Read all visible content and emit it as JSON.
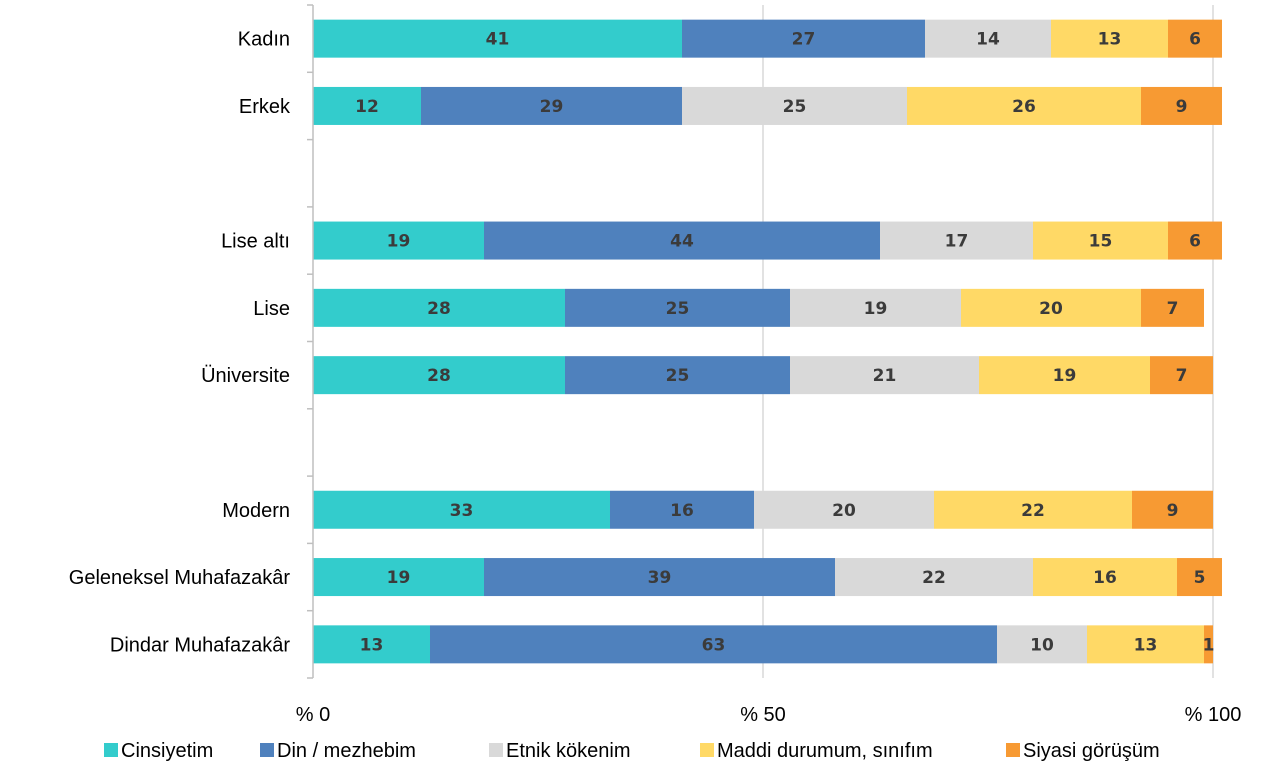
{
  "chart_data": {
    "type": "bar",
    "orientation": "horizontal",
    "stacked": true,
    "title": "",
    "xlabel": "",
    "ylabel": "",
    "xlim": [
      0,
      100
    ],
    "x_ticks": [
      "% 0",
      "% 50",
      "% 100"
    ],
    "grid": "vertical",
    "legend_position": "bottom",
    "categories": [
      "Kadın",
      "Erkek",
      "",
      "Lise altı",
      "Lise",
      "Üniversite",
      "",
      "Modern",
      "Geleneksel Muhafazakâr",
      "Dindar Muhafazakâr"
    ],
    "series": [
      {
        "name": "Cinsiyetim",
        "color": "#33cccc",
        "values": [
          41,
          12,
          null,
          19,
          28,
          28,
          null,
          33,
          19,
          13
        ],
        "labels": [
          "41",
          "12",
          "",
          "19",
          "28",
          "28",
          "",
          "33",
          "19",
          "13"
        ]
      },
      {
        "name": "Din / mezhebim",
        "color": "#4f81bd",
        "values": [
          27,
          29,
          null,
          44,
          25,
          25,
          null,
          16,
          39,
          63
        ],
        "labels": [
          "27",
          "29",
          "",
          "44",
          "25",
          "25",
          "",
          "16",
          "39",
          "63"
        ]
      },
      {
        "name": "Etnik kökenim",
        "color": "#d9d9d9",
        "values": [
          14,
          25,
          null,
          17,
          19,
          21,
          null,
          20,
          22,
          10
        ],
        "labels": [
          "14",
          "25",
          "",
          "17",
          "19",
          "21",
          "",
          "20",
          "22",
          "10"
        ]
      },
      {
        "name": "Maddi durumum, sınıfım",
        "color": "#ffd966",
        "values": [
          13,
          26,
          null,
          15,
          20,
          19,
          null,
          22,
          16,
          13
        ],
        "labels": [
          "13",
          "26",
          "",
          "15",
          "20",
          "19",
          "",
          "22",
          "16",
          "13"
        ]
      },
      {
        "name": "Siyasi görüşüm",
        "color": "#f79a33",
        "values": [
          6,
          9,
          null,
          6,
          7,
          7,
          null,
          9,
          5,
          1
        ],
        "labels": [
          "6",
          "9",
          "",
          "6",
          "7",
          "7",
          "",
          "9",
          "5",
          "1"
        ]
      }
    ]
  }
}
